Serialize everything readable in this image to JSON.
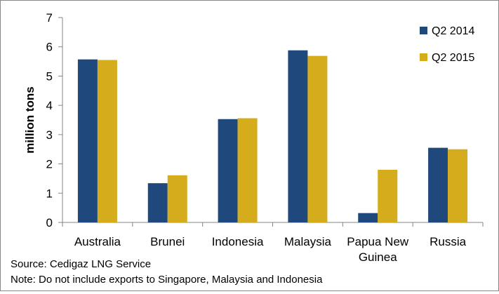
{
  "chart_data": {
    "type": "bar",
    "categories": [
      "Australia",
      "Brunei",
      "Indonesia",
      "Malaysia",
      "Papua New Guinea",
      "Russia"
    ],
    "category_lines": [
      [
        "Australia"
      ],
      [
        "Brunei"
      ],
      [
        "Indonesia"
      ],
      [
        "Malaysia"
      ],
      [
        "Papua New",
        "Guinea"
      ],
      [
        "Russia"
      ]
    ],
    "series": [
      {
        "name": "Q2 2014",
        "color": "#1F497D",
        "values": [
          5.57,
          1.34,
          3.53,
          5.88,
          0.32,
          2.55
        ]
      },
      {
        "name": "Q2 2015",
        "color": "#D4AC1C",
        "values": [
          5.55,
          1.61,
          3.56,
          5.69,
          1.8,
          2.5
        ]
      }
    ],
    "title": "",
    "xlabel": "",
    "ylabel": "million tons",
    "ylim": [
      0,
      7
    ],
    "yticks": [
      0,
      1,
      2,
      3,
      4,
      5,
      6,
      7
    ],
    "grid": false,
    "legend_position": "top-right"
  },
  "notes": {
    "source": "Source: Cedigaz LNG Service",
    "note": "Note: Do not include exports to Singapore, Malaysia and Indonesia"
  }
}
